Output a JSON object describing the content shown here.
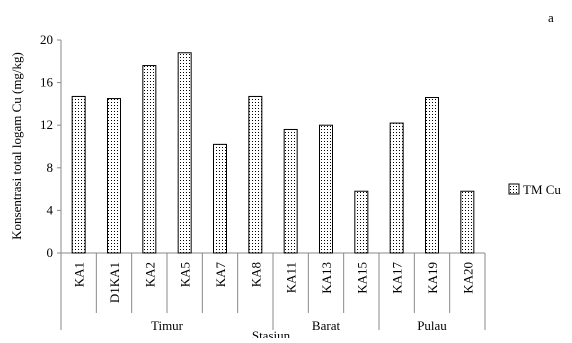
{
  "corner_label": "a",
  "chart_data": {
    "type": "bar",
    "categories": [
      "KA1",
      "D1KA1",
      "KA2",
      "KA5",
      "KA7",
      "KA8",
      "KA11",
      "KA13",
      "KA15",
      "KA17",
      "KA19",
      "KA20"
    ],
    "series": [
      {
        "name": "TM Cu",
        "values": [
          14.7,
          14.5,
          17.6,
          18.8,
          10.2,
          14.7,
          11.6,
          12.0,
          5.8,
          12.2,
          14.6,
          5.8
        ]
      }
    ],
    "groups": [
      {
        "label": "Timur",
        "categories": [
          "KA1",
          "D1KA1",
          "KA2",
          "KA5",
          "KA7",
          "KA8"
        ]
      },
      {
        "label": "Barat",
        "categories": [
          "KA11",
          "KA13",
          "KA15"
        ]
      },
      {
        "label": "Pulau",
        "categories": [
          "KA17",
          "KA19",
          "KA20"
        ]
      }
    ],
    "xlabel": "Stasiun",
    "ylabel": "Konsentrasi total logam Cu (mg/kg)",
    "ylim": [
      0,
      20
    ],
    "yticks": [
      0,
      4,
      8,
      12,
      16,
      20
    ],
    "grid": false,
    "legend_position": "right",
    "bar_pattern": "dotted",
    "colors": {
      "bar_fill": "#ffffff",
      "bar_dots": "#000000",
      "axis": "#888888"
    }
  }
}
